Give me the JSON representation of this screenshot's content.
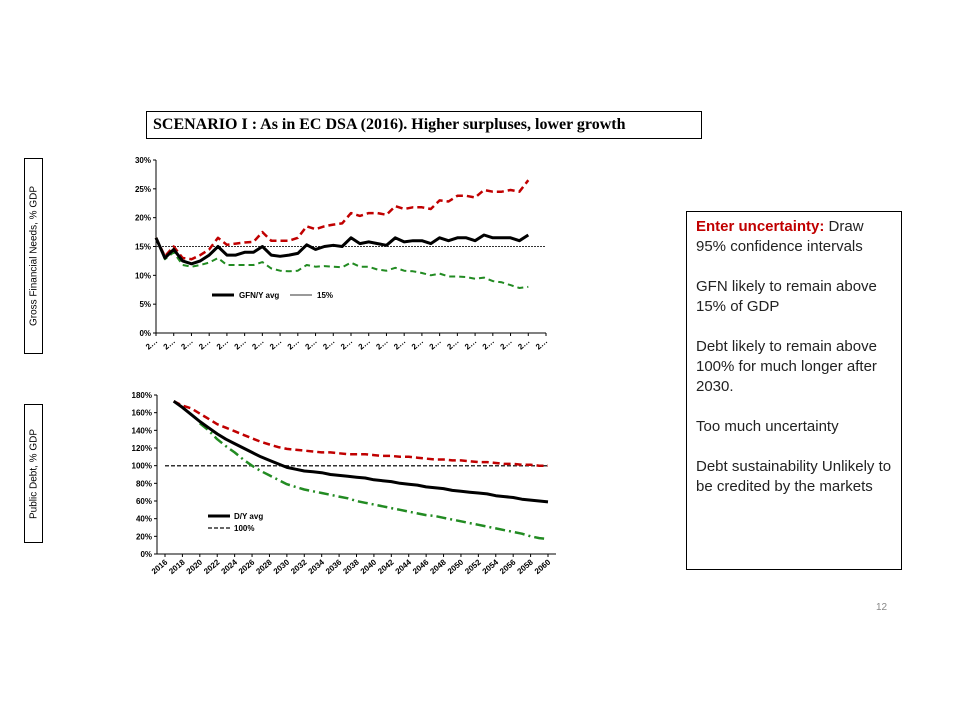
{
  "slide": {
    "title": "SCENARIO I : As in EC DSA (2016). Higher surpluses, lower growth",
    "page_number": "12",
    "panel": {
      "heading": "Enter uncertainty:",
      "heading_rest": " Draw 95% confidence intervals",
      "p2": "GFN likely to remain above 15% of GDP",
      "p3": "Debt likely to remain above 100% for much longer after 2030.",
      "p4": "Too much uncertainty",
      "p5": "Debt sustainability Unlikely to be credited by the markets"
    },
    "colors": {
      "accent": "#c00000",
      "upper_band": "#c00000",
      "lower_band": "#228b22",
      "mean": "#000000"
    }
  },
  "chart_data": [
    {
      "type": "line",
      "ylabel": "Gross Financial Needs, % GDP",
      "x_tick_label": "2…",
      "x": [
        2016,
        2017,
        2018,
        2019,
        2020,
        2021,
        2022,
        2023,
        2024,
        2025,
        2026,
        2027,
        2028,
        2029,
        2030,
        2031,
        2032,
        2033,
        2034,
        2035,
        2036,
        2037,
        2038,
        2039,
        2040,
        2041,
        2042,
        2043,
        2044,
        2045,
        2046,
        2047,
        2048,
        2049,
        2050,
        2051,
        2052,
        2053,
        2054,
        2055,
        2056,
        2057,
        2058,
        2059,
        2060
      ],
      "yticks": [
        "0%",
        "5%",
        "10%",
        "15%",
        "20%",
        "25%",
        "30%"
      ],
      "ylim": [
        0,
        30
      ],
      "series": [
        {
          "name": "GFN/Y avg",
          "style": "solid",
          "values": [
            16.5,
            13.0,
            14.5,
            12.5,
            12.0,
            12.5,
            13.5,
            15.0,
            13.5,
            13.5,
            14.0,
            14.0,
            15.0,
            13.5,
            13.3,
            13.5,
            13.8,
            15.3,
            14.5,
            15.0,
            15.2,
            15.0,
            16.5,
            15.5,
            15.8,
            15.5,
            15.2,
            16.5,
            15.8,
            16.0,
            16.0,
            15.5,
            16.5,
            16.0,
            16.5,
            16.5,
            16.0,
            17.0,
            16.5,
            16.5,
            16.5,
            16.0,
            17.0,
            null,
            null
          ]
        },
        {
          "name": "15%",
          "style": "thin",
          "values": [
            15,
            15,
            15,
            15,
            15,
            15,
            15,
            15,
            15,
            15,
            15,
            15,
            15,
            15,
            15,
            15,
            15,
            15,
            15,
            15,
            15,
            15,
            15,
            15,
            15,
            15,
            15,
            15,
            15,
            15,
            15,
            15,
            15,
            15,
            15,
            15,
            15,
            15,
            15,
            15,
            15,
            15,
            15,
            15,
            15
          ]
        },
        {
          "style": "dashed-upper",
          "values": [
            16.5,
            13.3,
            15.0,
            13.0,
            12.8,
            13.5,
            14.5,
            16.5,
            15.3,
            15.5,
            15.7,
            15.8,
            17.5,
            16.0,
            16.0,
            16.0,
            16.5,
            18.5,
            18.0,
            18.5,
            18.8,
            19.0,
            20.8,
            20.3,
            20.8,
            20.8,
            20.5,
            22.0,
            21.5,
            21.8,
            21.8,
            21.5,
            23.0,
            22.8,
            23.8,
            23.8,
            23.5,
            24.8,
            24.5,
            24.5,
            24.8,
            24.5,
            26.5,
            null,
            null
          ]
        },
        {
          "style": "dashed-lower",
          "values": [
            16.5,
            12.8,
            14.0,
            11.8,
            11.5,
            11.8,
            12.2,
            13.0,
            11.8,
            11.8,
            11.8,
            11.8,
            12.3,
            11.2,
            10.8,
            10.7,
            10.8,
            11.8,
            11.5,
            11.6,
            11.5,
            11.4,
            12.2,
            11.5,
            11.5,
            11.0,
            10.8,
            11.3,
            10.8,
            10.7,
            10.4,
            10.0,
            10.3,
            9.8,
            9.8,
            9.7,
            9.4,
            9.6,
            9.0,
            8.8,
            8.3,
            7.8,
            8.0,
            null,
            null
          ]
        }
      ]
    },
    {
      "type": "line",
      "ylabel": "Public Debt, % GDP",
      "x": [
        2016,
        2017,
        2018,
        2019,
        2020,
        2021,
        2022,
        2023,
        2024,
        2025,
        2026,
        2027,
        2028,
        2029,
        2030,
        2031,
        2032,
        2033,
        2034,
        2035,
        2036,
        2037,
        2038,
        2039,
        2040,
        2041,
        2042,
        2043,
        2044,
        2045,
        2046,
        2047,
        2048,
        2049,
        2050,
        2051,
        2052,
        2053,
        2054,
        2055,
        2056,
        2057,
        2058,
        2059,
        2060
      ],
      "xticks": [
        "2016",
        "2018",
        "2020",
        "2022",
        "2024",
        "2026",
        "2028",
        "2030",
        "2032",
        "2034",
        "2036",
        "2038",
        "2040",
        "2042",
        "2044",
        "2046",
        "2048",
        "2050",
        "2052",
        "2054",
        "2056",
        "2058",
        "2060"
      ],
      "yticks": [
        "0%",
        "20%",
        "40%",
        "60%",
        "80%",
        "100%",
        "120%",
        "140%",
        "160%",
        "180%"
      ],
      "ylim": [
        0,
        180
      ],
      "series": [
        {
          "name": "D/Y avg",
          "style": "solid",
          "values": [
            null,
            173,
            166,
            158,
            150,
            143,
            136,
            130,
            125,
            120,
            115,
            110,
            106,
            102,
            98,
            96,
            94,
            93,
            92,
            90,
            89,
            88,
            87,
            86,
            84,
            83,
            82,
            80,
            79,
            78,
            76,
            75,
            74,
            72,
            71,
            70,
            69,
            68,
            66,
            65,
            64,
            62,
            61,
            60,
            59
          ]
        },
        {
          "name": "100%",
          "style": "dashed",
          "values": [
            100,
            100,
            100,
            100,
            100,
            100,
            100,
            100,
            100,
            100,
            100,
            100,
            100,
            100,
            100,
            100,
            100,
            100,
            100,
            100,
            100,
            100,
            100,
            100,
            100,
            100,
            100,
            100,
            100,
            100,
            100,
            100,
            100,
            100,
            100,
            100,
            100,
            100,
            100,
            100,
            100,
            100,
            100,
            100,
            100
          ]
        },
        {
          "style": "dashed-upper",
          "values": [
            null,
            173,
            168,
            165,
            159,
            153,
            147,
            143,
            139,
            135,
            131,
            127,
            124,
            121,
            119,
            118,
            117,
            116,
            115,
            115,
            114,
            113,
            113,
            113,
            112,
            111,
            111,
            110,
            110,
            109,
            108,
            107,
            107,
            106,
            106,
            105,
            104,
            104,
            103,
            102,
            102,
            101,
            101,
            100,
            100
          ]
        },
        {
          "style": "dashdot-lower",
          "values": [
            null,
            null,
            173,
            null,
            148,
            140,
            130,
            122,
            115,
            107,
            100,
            94,
            89,
            84,
            79,
            76,
            73,
            71,
            69,
            67,
            65,
            63,
            60,
            58,
            56,
            54,
            52,
            50,
            48,
            46,
            44,
            43,
            41,
            39,
            37,
            35,
            33,
            31,
            29,
            27,
            25,
            23,
            20,
            18,
            17
          ]
        }
      ]
    }
  ]
}
